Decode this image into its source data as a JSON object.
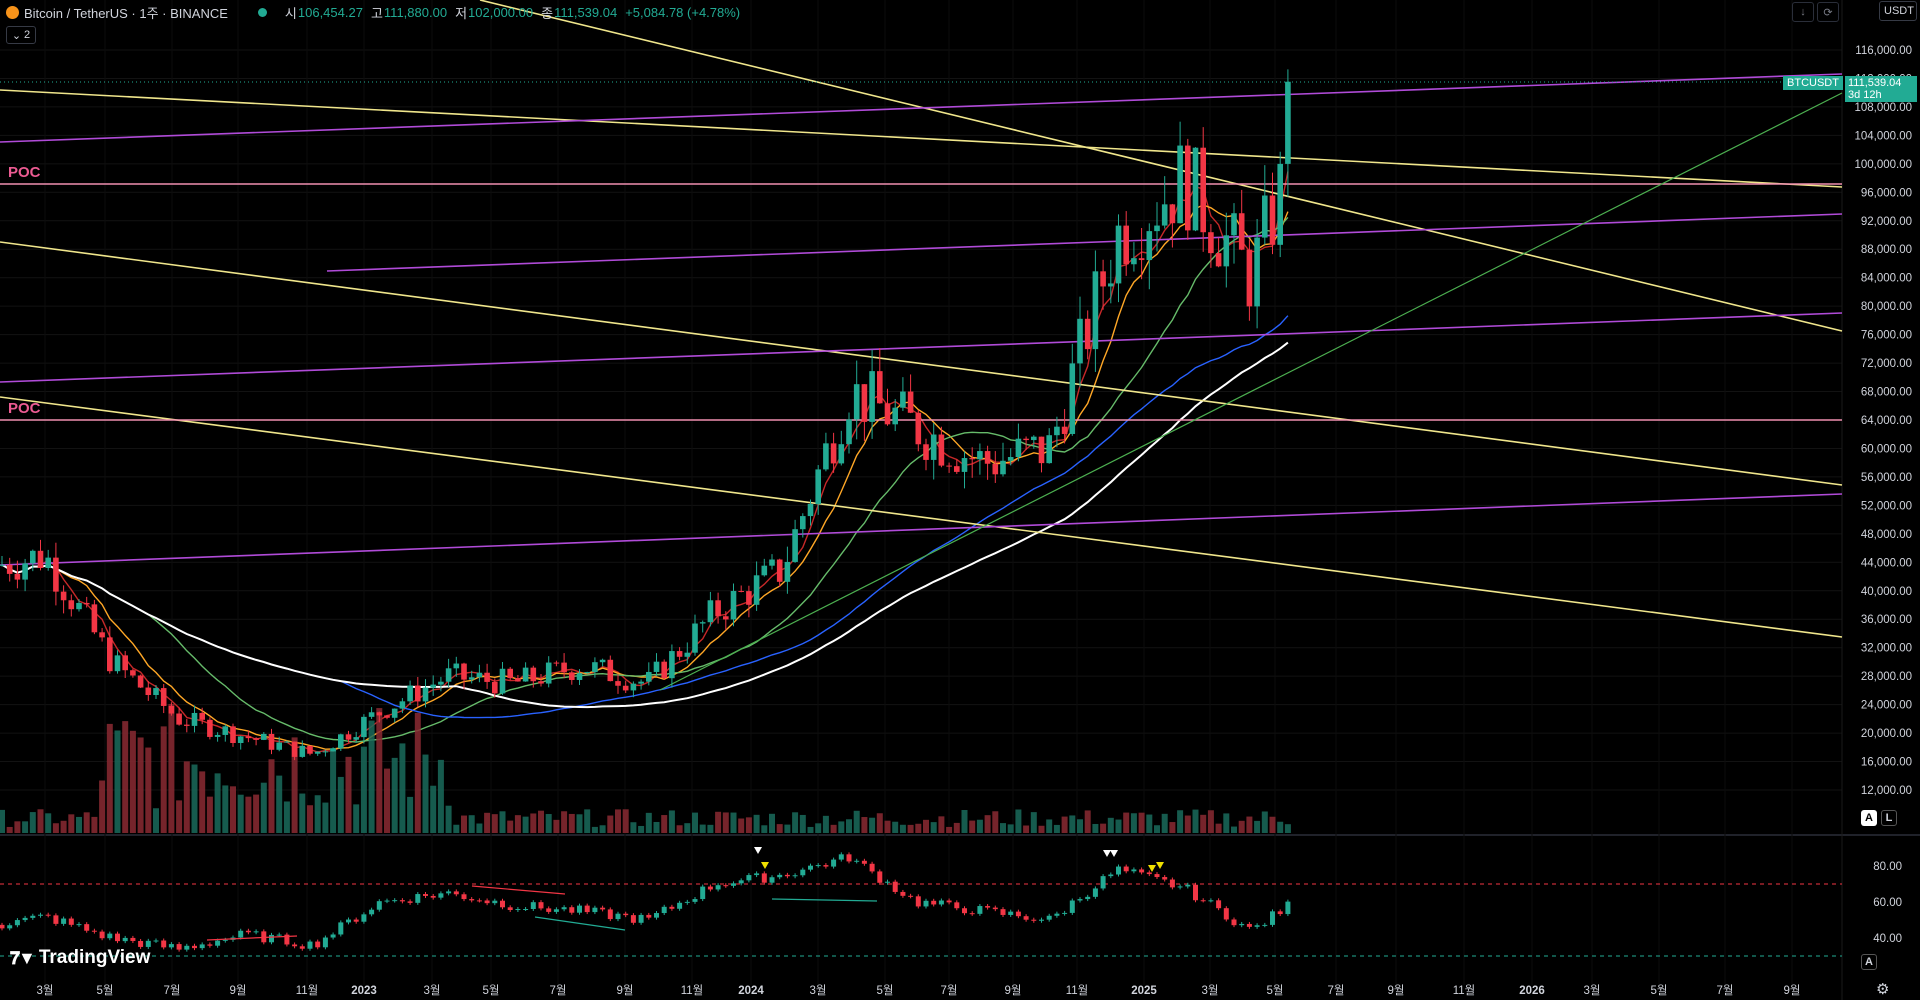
{
  "header": {
    "symbol": "Bitcoin / TetherUS · 1주 · BINANCE",
    "open_label": "시",
    "open": "106,454.27",
    "high_label": "고",
    "high": "111,880.00",
    "low_label": "저",
    "low": "102,000.00",
    "close_label": "종",
    "close": "111,539.04",
    "change": "+5,084.78 (+4.78%)",
    "currency": "USDT",
    "legend_count": "2",
    "icons": [
      "bitcoin-icon",
      "down-arrow-icon",
      "sync-icon"
    ]
  },
  "price_tag": {
    "symbol": "BTCUSDT",
    "price": "111,539.04",
    "countdown": "3d 12h"
  },
  "buttons": {
    "auto": "A",
    "log": "L"
  },
  "logo": {
    "text": "TradingView"
  },
  "annotations": {
    "poc_upper": "POC",
    "poc_lower": "POC"
  },
  "colors": {
    "up": "#22ab94",
    "down": "#f23645",
    "yellow": "#f0e68c",
    "purple": "#b04bd8",
    "poc": "#ef8fb0"
  },
  "chart_data": [
    {
      "type": "candlestick",
      "title": "Bitcoin / TetherUS · 1주 · BINANCE",
      "y_ticks": [
        "116,000.00",
        "112,000.00",
        "108,000.00",
        "104,000.00",
        "100,000.00",
        "96,000.00",
        "92,000.00",
        "88,000.00",
        "84,000.00",
        "80,000.00",
        "76,000.00",
        "72,000.00",
        "68,000.00",
        "64,000.00",
        "60,000.00",
        "56,000.00",
        "52,000.00",
        "48,000.00",
        "44,000.00",
        "40,000.00",
        "36,000.00",
        "32,000.00",
        "28,000.00",
        "24,000.00",
        "20,000.00",
        "16,000.00",
        "12,000.00"
      ],
      "x_ticks": [
        "3월",
        "5월",
        "7월",
        "9월",
        "11월",
        "2023",
        "3월",
        "5월",
        "7월",
        "9월",
        "11월",
        "2024",
        "3월",
        "5월",
        "7월",
        "9월",
        "11월",
        "2025",
        "3월",
        "5월",
        "7월",
        "9월",
        "11월",
        "2026",
        "3월",
        "5월",
        "7월",
        "9월"
      ],
      "ylim": [
        8000,
        120000
      ],
      "series": [
        {
          "name": "price",
          "x": [
            "2022-01",
            "2022-03",
            "2022-05",
            "2022-07",
            "2022-09",
            "2022-11",
            "2023-01",
            "2023-03",
            "2023-05",
            "2023-07",
            "2023-09",
            "2023-11",
            "2024-01",
            "2024-03",
            "2024-05",
            "2024-07",
            "2024-09",
            "2024-11",
            "2025-01",
            "2025-03",
            "2025-05"
          ],
          "values": [
            43000,
            45000,
            30000,
            22000,
            19500,
            17000,
            23000,
            28000,
            27000,
            29500,
            27000,
            37000,
            43000,
            68000,
            63000,
            58000,
            60000,
            90000,
            98000,
            84000,
            111539
          ]
        }
      ],
      "annotations": [
        "POC 97,000",
        "POC 64,000"
      ]
    },
    {
      "type": "line",
      "title": "",
      "y_ticks": [
        "80.00",
        "60.00",
        "40.00"
      ],
      "ylim": [
        30,
        90
      ],
      "series": [
        {
          "name": "rsi",
          "x": [
            "2022-01",
            "2022-03",
            "2022-05",
            "2022-07",
            "2022-09",
            "2022-11",
            "2023-01",
            "2023-03",
            "2023-05",
            "2023-07",
            "2023-09",
            "2023-11",
            "2024-01",
            "2024-03",
            "2024-05",
            "2024-07",
            "2024-09",
            "2024-11",
            "2025-01",
            "2025-03",
            "2025-05"
          ],
          "values": [
            45,
            52,
            40,
            34,
            42,
            36,
            60,
            65,
            58,
            55,
            50,
            70,
            75,
            85,
            60,
            55,
            50,
            78,
            68,
            44,
            69
          ]
        }
      ]
    }
  ]
}
